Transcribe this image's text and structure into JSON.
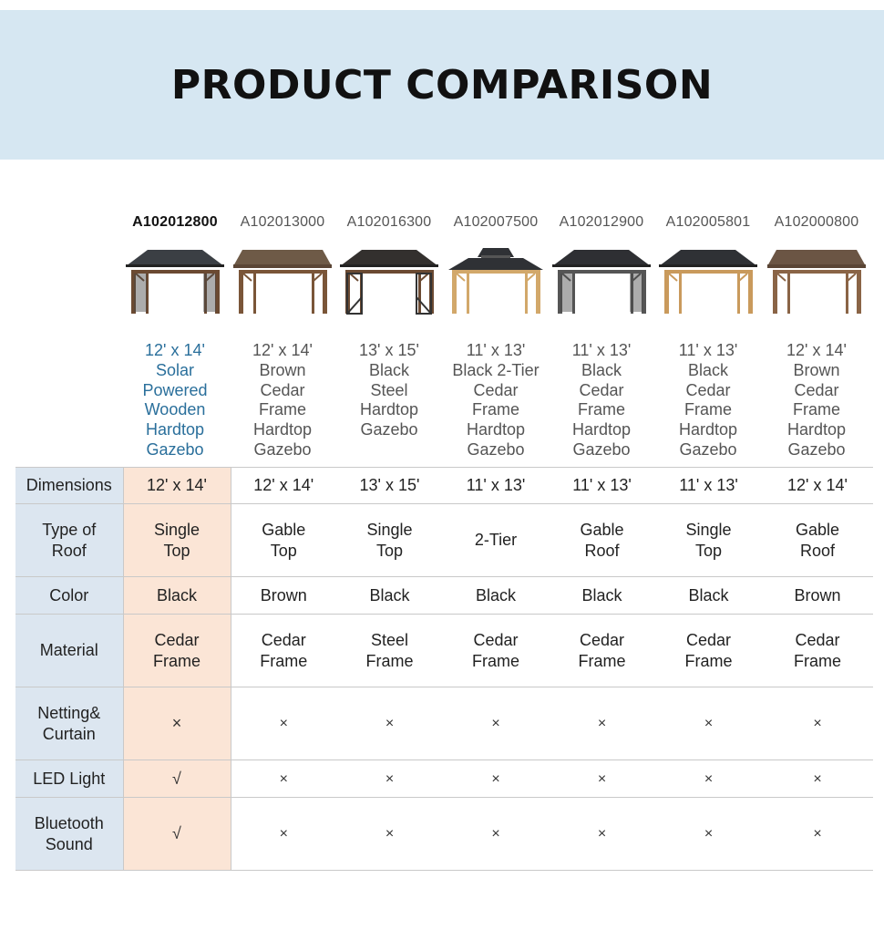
{
  "banner": {
    "title": "PRODUCT COMPARISON"
  },
  "products": [
    {
      "sku": "A102012800",
      "name": [
        "12' x 14'",
        "Solar",
        "Powered",
        "Wooden",
        "Hardtop",
        "Gazebo"
      ],
      "roof_color": "#3b3f44",
      "post_color": "#6b4a32",
      "style": "curtain"
    },
    {
      "sku": "A102013000",
      "name": [
        "12' x 14'",
        "Brown",
        "Cedar",
        "Frame",
        "Hardtop",
        "Gazebo"
      ],
      "roof_color": "#6e5a47",
      "post_color": "#7a5538",
      "style": "gable"
    },
    {
      "sku": "A102016300",
      "name": [
        "13' x 15'",
        "Black",
        "Steel",
        "Hardtop",
        "Gazebo"
      ],
      "roof_color": "#33302e",
      "post_color": "#6b4a32",
      "style": "steel"
    },
    {
      "sku": "A102007500",
      "name": [
        "11' x 13'",
        "Black 2-Tier",
        "Cedar",
        "Frame",
        "Hardtop",
        "Gazebo"
      ],
      "roof_color": "#2f3135",
      "post_color": "#d2a86a",
      "style": "tier"
    },
    {
      "sku": "A102012900",
      "name": [
        "11' x 13'",
        "Black",
        "Cedar",
        "Frame",
        "Hardtop",
        "Gazebo"
      ],
      "roof_color": "#2e2f33",
      "post_color": "#555555",
      "style": "netting"
    },
    {
      "sku": "A102005801",
      "name": [
        "11' x 13'",
        "Black",
        "Cedar",
        "Frame",
        "Hardtop",
        "Gazebo"
      ],
      "roof_color": "#2f3135",
      "post_color": "#c99a5c",
      "style": "single"
    },
    {
      "sku": "A102000800",
      "name": [
        "12' x 14'",
        "Brown",
        "Cedar",
        "Frame",
        "Hardtop",
        "Gazebo"
      ],
      "roof_color": "#6b5544",
      "post_color": "#8a6446",
      "style": "gable"
    }
  ],
  "table": {
    "rows": [
      {
        "label": [
          "Dimensions"
        ],
        "height": 40,
        "values": [
          [
            "12' x 14'"
          ],
          [
            "12' x 14'"
          ],
          [
            "13' x 15'"
          ],
          [
            "11' x 13'"
          ],
          [
            "11' x 13'"
          ],
          [
            "11' x 13'"
          ],
          [
            "12' x 14'"
          ]
        ],
        "kind": "text"
      },
      {
        "label": [
          "Type of",
          "Roof"
        ],
        "height": 80,
        "values": [
          [
            "Single",
            "Top"
          ],
          [
            "Gable",
            "Top"
          ],
          [
            "Single",
            "Top"
          ],
          [
            "2-Tier"
          ],
          [
            "Gable",
            "Roof"
          ],
          [
            "Single",
            "Top"
          ],
          [
            "Gable",
            "Roof"
          ]
        ],
        "kind": "text"
      },
      {
        "label": [
          "Color"
        ],
        "height": 41,
        "values": [
          [
            "Black"
          ],
          [
            "Brown"
          ],
          [
            "Black"
          ],
          [
            "Black"
          ],
          [
            "Black"
          ],
          [
            "Black"
          ],
          [
            "Brown"
          ]
        ],
        "kind": "text"
      },
      {
        "label": [
          "Material"
        ],
        "height": 80,
        "values": [
          [
            "Cedar",
            "Frame"
          ],
          [
            "Cedar",
            "Frame"
          ],
          [
            "Steel",
            "Frame"
          ],
          [
            "Cedar",
            "Frame"
          ],
          [
            "Cedar",
            "Frame"
          ],
          [
            "Cedar",
            "Frame"
          ],
          [
            "Cedar",
            "Frame"
          ]
        ],
        "kind": "text"
      },
      {
        "label": [
          "Netting&",
          "Curtain"
        ],
        "height": 80,
        "values": [
          [
            "×"
          ],
          [
            "×"
          ],
          [
            "×"
          ],
          [
            "×"
          ],
          [
            "×"
          ],
          [
            "×"
          ],
          [
            "×"
          ]
        ],
        "kind": "mark"
      },
      {
        "label": [
          "LED Light"
        ],
        "height": 41,
        "values": [
          [
            "√"
          ],
          [
            "×"
          ],
          [
            "×"
          ],
          [
            "×"
          ],
          [
            "×"
          ],
          [
            "×"
          ],
          [
            "×"
          ]
        ],
        "kind": "mark"
      },
      {
        "label": [
          "Bluetooth",
          "Sound"
        ],
        "height": 80,
        "values": [
          [
            "√"
          ],
          [
            "×"
          ],
          [
            "×"
          ],
          [
            "×"
          ],
          [
            "×"
          ],
          [
            "×"
          ],
          [
            "×"
          ]
        ],
        "kind": "mark"
      }
    ]
  }
}
